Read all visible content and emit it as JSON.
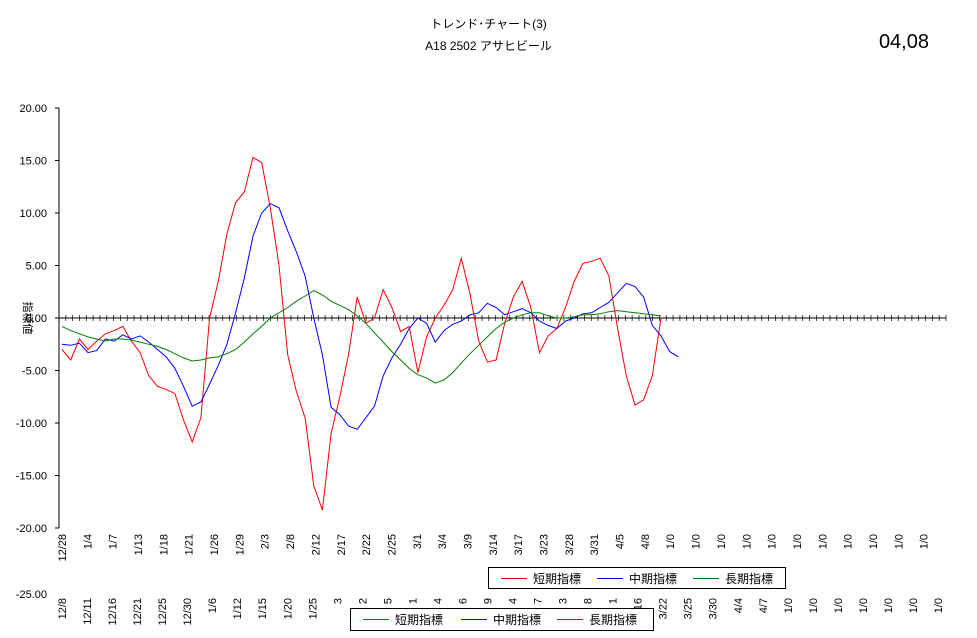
{
  "header": {
    "title_line1": "トレンド･チャート(3)",
    "title_line2": "A18   2502 アサヒビール",
    "date_code": "04,08"
  },
  "chart_data": {
    "type": "line",
    "ylabel": "指標値",
    "ylim": [
      -20,
      20
    ],
    "yticks": [
      "20.00",
      "15.00",
      "10.00",
      "5.00",
      "0.00",
      "-5.00",
      "-10.00",
      "-15.00",
      "-20.00"
    ],
    "yticks_overlap": [
      "-25.00"
    ],
    "grid": false,
    "zero_line": true,
    "categories_axis1": [
      "12/28",
      "1/4",
      "1/7",
      "1/13",
      "1/18",
      "1/21",
      "1/26",
      "1/29",
      "2/3",
      "2/8",
      "2/12",
      "2/17",
      "2/22",
      "2/25",
      "3/1",
      "3/4",
      "3/9",
      "3/14",
      "3/17",
      "3/23",
      "3/28",
      "3/31",
      "4/5",
      "4/8",
      "1/0",
      "1/0",
      "1/0",
      "1/0",
      "1/0",
      "1/0",
      "1/0",
      "1/0",
      "1/0",
      "1/0",
      "1/0"
    ],
    "categories_axis2": [
      "12/8",
      "12/11",
      "12/16",
      "12/21",
      "12/25",
      "12/30",
      "1/6",
      "1/12",
      "1/15",
      "1/20",
      "1/25",
      "3",
      "2",
      "5",
      "1",
      "4",
      "6",
      "9",
      "4",
      "7",
      "3",
      "8",
      "1",
      "3/16",
      "3/22",
      "3/25",
      "3/30",
      "4/4",
      "4/7",
      "1/0",
      "1/0",
      "1/0",
      "1/0",
      "1/0",
      "1/0",
      "1/0"
    ],
    "legend_labels": [
      "短期指標",
      "中期指標",
      "長期指標"
    ],
    "series": [
      {
        "name": "短期指標",
        "color": "#ff0000",
        "values": [
          -3.0,
          -4.0,
          -2.0,
          -3.0,
          -2.2,
          -1.5,
          -1.2,
          -0.8,
          -2.2,
          -3.3,
          -5.5,
          -6.5,
          -6.8,
          -7.2,
          -9.7,
          -11.8,
          -9.5,
          0.0,
          3.5,
          8.0,
          11.0,
          12.0,
          15.3,
          14.8,
          10.5,
          5.0,
          -3.5,
          -7.0,
          -9.5,
          -16.0,
          -18.3,
          -11.0,
          -7.5,
          -3.5,
          2.0,
          -0.5,
          0.0,
          2.7,
          1.0,
          -1.3,
          -0.8,
          -5.2,
          -1.8,
          0.0,
          1.2,
          2.7,
          5.7,
          2.3,
          -2.2,
          -4.2,
          -4.0,
          -0.5,
          2.0,
          3.5,
          1.0,
          -3.3,
          -1.7,
          -1.0,
          1.0,
          3.5,
          5.2,
          5.4,
          5.7,
          4.0,
          -1.0,
          -5.5,
          -8.3,
          -7.8,
          -5.5,
          0.0
        ]
      },
      {
        "name": "中期指標",
        "color": "#0000ff",
        "values": [
          -2.5,
          -2.6,
          -2.4,
          -3.3,
          -3.1,
          -2.0,
          -2.2,
          -1.6,
          -2.0,
          -1.7,
          -2.3,
          -3.0,
          -3.7,
          -4.8,
          -6.5,
          -8.4,
          -8.0,
          -6.3,
          -4.5,
          -2.5,
          0.5,
          3.8,
          7.8,
          10.0,
          10.9,
          10.5,
          8.3,
          6.3,
          4.0,
          0.0,
          -3.5,
          -8.5,
          -9.2,
          -10.3,
          -10.6,
          -9.5,
          -8.4,
          -5.5,
          -3.8,
          -2.5,
          -1.0,
          0.0,
          -0.5,
          -2.3,
          -1.2,
          -0.6,
          -0.3,
          0.3,
          0.5,
          1.4,
          1.0,
          0.3,
          0.6,
          0.9,
          0.5,
          -0.3,
          -0.7,
          -1.0,
          -0.3,
          0.0,
          0.4,
          0.5,
          1.0,
          1.5,
          2.4,
          3.3,
          3.0,
          2.0,
          -0.7,
          -1.7,
          -3.2,
          -3.7
        ]
      },
      {
        "name": "長期指標",
        "color": "#008000",
        "values": [
          -0.8,
          -1.2,
          -1.5,
          -1.8,
          -2.0,
          -2.2,
          -2.0,
          -2.0,
          -2.1,
          -2.3,
          -2.5,
          -2.7,
          -3.0,
          -3.4,
          -3.8,
          -4.1,
          -4.0,
          -3.8,
          -3.7,
          -3.4,
          -3.0,
          -2.3,
          -1.5,
          -0.8,
          0.0,
          0.5,
          1.0,
          1.6,
          2.1,
          2.6,
          2.2,
          1.6,
          1.2,
          0.8,
          0.2,
          -0.5,
          -1.4,
          -2.3,
          -3.2,
          -4.0,
          -4.8,
          -5.4,
          -5.7,
          -6.2,
          -5.9,
          -5.2,
          -4.3,
          -3.4,
          -2.6,
          -1.8,
          -1.0,
          -0.4,
          0.0,
          0.3,
          0.5,
          0.5,
          0.2,
          0.0,
          0.0,
          0.1,
          0.3,
          0.3,
          0.4,
          0.6,
          0.7,
          0.6,
          0.5,
          0.4,
          0.3,
          0.2
        ]
      }
    ]
  }
}
